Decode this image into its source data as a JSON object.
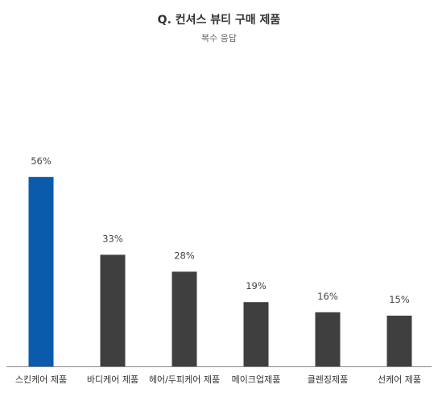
{
  "title": "Q. 컨셔스 뷰티 구매 제품",
  "subtitle": "복수 응답",
  "chart_data": {
    "type": "bar",
    "title": "Q. 컨셔스 뷰티 구매 제품",
    "subtitle": "복수 응답",
    "categories": [
      "스킨케어 제품",
      "바디케어 제품",
      "헤어/두피케어 제품",
      "메이크업제품",
      "클렌징제품",
      "선케어 제품"
    ],
    "values": [
      56,
      33,
      28,
      19,
      16,
      15
    ],
    "value_labels": [
      "56%",
      "33%",
      "28%",
      "19%",
      "16%",
      "15%"
    ],
    "unit": "%",
    "ylim": [
      0,
      70
    ],
    "grid": false,
    "legend": "none",
    "colors": {
      "highlight": "#0a5bab",
      "default": "#3f3f3f",
      "axis": "#888888",
      "label": "#444444"
    }
  }
}
